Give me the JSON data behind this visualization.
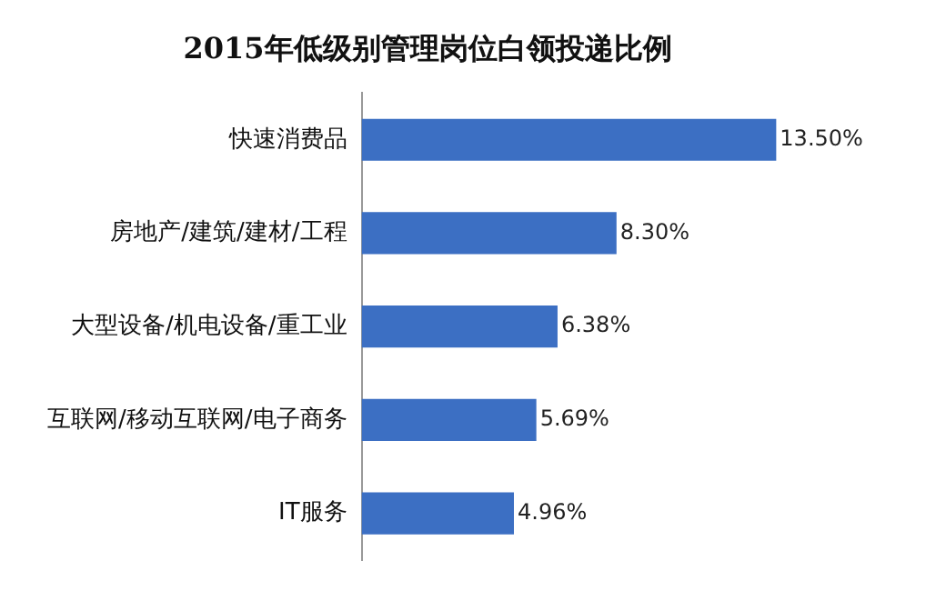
{
  "chart_data": {
    "type": "bar",
    "orientation": "horizontal",
    "title": "2015年低级别管理岗位白领投递比例",
    "categories": [
      "快速消费品",
      "房地产/建筑/建材/工程",
      "大型设备/机电设备/重工业",
      "互联网/移动互联网/电子商务",
      "IT服务"
    ],
    "values": [
      13.5,
      8.3,
      6.38,
      5.69,
      4.96
    ],
    "value_labels": [
      "13.50%",
      "8.30%",
      "6.38%",
      "5.69%",
      "4.96%"
    ],
    "color": "#3c6fc3"
  }
}
